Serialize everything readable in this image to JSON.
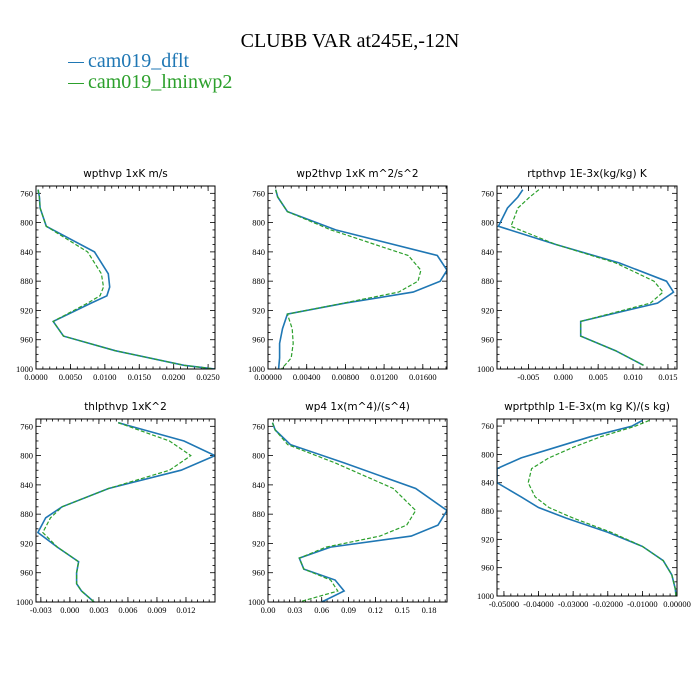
{
  "figure": {
    "title": "CLUBB VAR at245E,-12N",
    "legend": [
      {
        "label": "cam019_dflt",
        "color": "#1f77b4",
        "dash": "solid"
      },
      {
        "label": "cam019_lminwp2",
        "color": "#2ca02c",
        "dash": "dashed"
      }
    ]
  },
  "chart_data": [
    {
      "type": "line",
      "title": "wpthvp   1xK m/s",
      "xlim": [
        0.0,
        0.026
      ],
      "ylim": [
        1000,
        750
      ],
      "y_inverted": true,
      "xticks": [
        0.0,
        0.005,
        0.01,
        0.015,
        0.02,
        0.025
      ],
      "xtick_labels": [
        "0.0000",
        "0.0050",
        "0.0100",
        "0.0150",
        "0.0200",
        "0.0250"
      ],
      "yticks": [
        760,
        800,
        840,
        880,
        920,
        960,
        1000
      ],
      "y": [
        755,
        765,
        780,
        805,
        840,
        870,
        888,
        900,
        910,
        935,
        955,
        975,
        995,
        1000
      ],
      "series": [
        {
          "name": "cam019_dflt",
          "x": [
            0.0003,
            0.0005,
            0.0006,
            0.0015,
            0.0085,
            0.0105,
            0.0107,
            0.0103,
            0.008,
            0.0025,
            0.004,
            0.0115,
            0.0215,
            0.026
          ]
        },
        {
          "name": "cam019_lminwp2",
          "x": [
            0.0003,
            0.0005,
            0.0006,
            0.0015,
            0.0075,
            0.0095,
            0.0098,
            0.0093,
            0.0075,
            0.0025,
            0.004,
            0.0115,
            0.0215,
            0.026
          ]
        }
      ]
    },
    {
      "type": "line",
      "title": "wp2thvp   1xK m^2/s^2",
      "xlim": [
        0.0,
        0.0185
      ],
      "ylim": [
        1000,
        750
      ],
      "y_inverted": true,
      "xticks": [
        0.0,
        0.004,
        0.008,
        0.012,
        0.016
      ],
      "xtick_labels": [
        "0.00000",
        "0.00400",
        "0.00800",
        "0.01200",
        "0.01600"
      ],
      "yticks": [
        760,
        800,
        840,
        880,
        920,
        960,
        1000
      ],
      "y": [
        755,
        765,
        785,
        810,
        845,
        865,
        880,
        895,
        910,
        925,
        945,
        965,
        985,
        1000
      ],
      "series": [
        {
          "name": "cam019_dflt",
          "x": [
            0.0008,
            0.001,
            0.002,
            0.007,
            0.0175,
            0.0185,
            0.0178,
            0.015,
            0.008,
            0.002,
            0.0015,
            0.0012,
            0.0012,
            0.0011
          ]
        },
        {
          "name": "cam019_lminwp2",
          "x": [
            0.0008,
            0.001,
            0.002,
            0.0065,
            0.0145,
            0.0158,
            0.0155,
            0.0135,
            0.0078,
            0.002,
            0.0025,
            0.0026,
            0.0024,
            0.0014
          ]
        }
      ]
    },
    {
      "type": "line",
      "title": "rtpthvp   1E-3x(kg/kg) K",
      "xlim": [
        -0.0095,
        0.0163
      ],
      "ylim": [
        1000,
        750
      ],
      "y_inverted": true,
      "xticks": [
        -0.005,
        0.0,
        0.005,
        0.01,
        0.015
      ],
      "xtick_labels": [
        "-0.005",
        "0.000",
        "0.005",
        "0.010",
        "0.015"
      ],
      "yticks": [
        760,
        800,
        840,
        880,
        920,
        960,
        1000
      ],
      "y": [
        755,
        765,
        780,
        805,
        830,
        855,
        880,
        895,
        910,
        935,
        955,
        975,
        995
      ],
      "series": [
        {
          "name": "cam019_dflt",
          "x": [
            -0.0058,
            -0.0065,
            -0.008,
            -0.0093,
            -0.001,
            0.008,
            0.0148,
            0.0158,
            0.0135,
            0.0025,
            0.0025,
            0.0075,
            0.0115
          ]
        },
        {
          "name": "cam019_lminwp2",
          "x": [
            -0.0035,
            -0.0048,
            -0.0065,
            -0.0075,
            -0.001,
            0.0075,
            0.013,
            0.0143,
            0.0125,
            0.0025,
            0.0025,
            0.0075,
            0.0115
          ]
        }
      ]
    },
    {
      "type": "line",
      "title": "thlpthvp   1xK^2",
      "xlim": [
        -0.0035,
        0.015
      ],
      "ylim": [
        1000,
        750
      ],
      "y_inverted": true,
      "xticks": [
        -0.003,
        0.0,
        0.003,
        0.006,
        0.009,
        0.012
      ],
      "xtick_labels": [
        "-0.003",
        "0.000",
        "0.003",
        "0.006",
        "0.009",
        "0.012"
      ],
      "yticks": [
        760,
        800,
        840,
        880,
        920,
        960,
        1000
      ],
      "y": [
        755,
        780,
        800,
        820,
        845,
        870,
        885,
        905,
        925,
        945,
        960,
        975,
        985,
        1000
      ],
      "series": [
        {
          "name": "cam019_dflt",
          "x": [
            0.005,
            0.0118,
            0.015,
            0.0115,
            0.004,
            -0.0008,
            -0.0025,
            -0.0033,
            -0.0013,
            0.0009,
            0.0007,
            0.0007,
            0.0012,
            0.0025
          ]
        },
        {
          "name": "cam019_lminwp2",
          "x": [
            0.005,
            0.0103,
            0.0125,
            0.0103,
            0.004,
            -0.0008,
            -0.002,
            -0.0028,
            -0.0013,
            0.0009,
            0.0007,
            0.0007,
            0.0012,
            0.0025
          ]
        }
      ]
    },
    {
      "type": "line",
      "title": "wp4   1x(m^4)/(s^4)",
      "xlim": [
        0.0,
        0.2
      ],
      "ylim": [
        1000,
        750
      ],
      "y_inverted": true,
      "xticks": [
        0.0,
        0.03,
        0.06,
        0.09,
        0.12,
        0.15,
        0.18
      ],
      "xtick_labels": [
        "0.00",
        "0.03",
        "0.06",
        "0.09",
        "0.12",
        "0.15",
        "0.18"
      ],
      "yticks": [
        760,
        800,
        840,
        880,
        920,
        960,
        1000
      ],
      "y": [
        755,
        765,
        785,
        810,
        845,
        875,
        895,
        910,
        925,
        940,
        955,
        970,
        985,
        1000
      ],
      "series": [
        {
          "name": "cam019_dflt",
          "x": [
            0.005,
            0.008,
            0.025,
            0.085,
            0.165,
            0.2,
            0.19,
            0.16,
            0.07,
            0.035,
            0.04,
            0.075,
            0.085,
            0.06
          ]
        },
        {
          "name": "cam019_lminwp2",
          "x": [
            0.005,
            0.008,
            0.022,
            0.075,
            0.14,
            0.165,
            0.155,
            0.125,
            0.065,
            0.035,
            0.04,
            0.07,
            0.078,
            0.035
          ]
        }
      ]
    },
    {
      "type": "line",
      "title": "wprtpthlp   1-E-3x(m kg K)/(s kg)",
      "xlim": [
        -0.052,
        0.0
      ],
      "ylim": [
        1000,
        750
      ],
      "y_inverted": true,
      "xticks": [
        -0.05,
        -0.04,
        -0.03,
        -0.02,
        -0.01,
        0.0
      ],
      "xtick_labels": [
        "-0.05000",
        "-0.04000",
        "-0.03000",
        "-0.02000",
        "-0.01000",
        "0.00000"
      ],
      "yticks": [
        760,
        800,
        840,
        880,
        920,
        960,
        1000
      ],
      "y": [
        752,
        760,
        775,
        790,
        805,
        820,
        840,
        860,
        875,
        890,
        910,
        930,
        950,
        970,
        990,
        1000
      ],
      "series": [
        {
          "name": "cam019_dflt",
          "x": [
            -0.01,
            -0.013,
            -0.025,
            -0.035,
            -0.045,
            -0.052,
            -0.052,
            -0.045,
            -0.04,
            -0.032,
            -0.02,
            -0.01,
            -0.004,
            -0.0015,
            -0.0005,
            -0.0003
          ]
        },
        {
          "name": "cam019_lminwp2",
          "x": [
            -0.008,
            -0.012,
            -0.022,
            -0.03,
            -0.037,
            -0.042,
            -0.043,
            -0.041,
            -0.037,
            -0.03,
            -0.019,
            -0.01,
            -0.004,
            -0.0015,
            -0.0005,
            -0.0003
          ]
        }
      ]
    }
  ]
}
